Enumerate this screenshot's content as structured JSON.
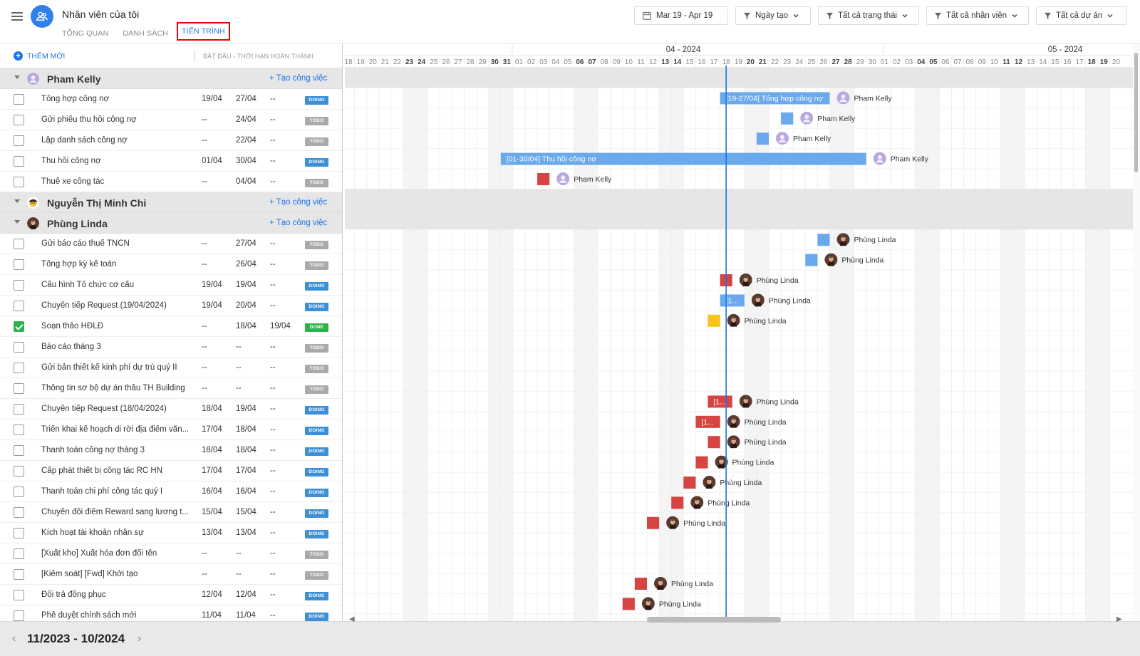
{
  "app": {
    "title": "Nhân viên của tôi",
    "tabs": [
      "TỔNG QUAN",
      "DANH SÁCH",
      "TIẾN TRÌNH"
    ],
    "active_tab": 2
  },
  "filters": {
    "date_range": "Mar 19 - Apr 19",
    "sort": "Ngày tạo",
    "status": "Tất cả trạng thái",
    "staff": "Tất cả nhân viên",
    "project": "Tất cả dự án"
  },
  "list": {
    "add_new": "THÊM MỚI",
    "col_header": "BẮT ĐẦU › THỜI HẠN  HOÀN THÀNH",
    "group_add": "+ Tạo công việc"
  },
  "timeline": {
    "months": [
      {
        "label": "04 - 2024",
        "x": 485
      },
      {
        "label": "05 - 2024",
        "x": 1021
      }
    ],
    "days": [
      "18",
      "19",
      "20",
      "21",
      "22",
      "23",
      "24",
      "25",
      "26",
      "27",
      "28",
      "29",
      "30",
      "31",
      "01",
      "02",
      "03",
      "04",
      "05",
      "06",
      "07",
      "08",
      "09",
      "10",
      "11",
      "12",
      "13",
      "14",
      "15",
      "16",
      "17",
      "18",
      "19",
      "20",
      "21",
      "22",
      "23",
      "24",
      "25",
      "26",
      "27",
      "28",
      "29",
      "30",
      "01",
      "02",
      "03",
      "04",
      "05",
      "06",
      "07",
      "08",
      "09",
      "10",
      "11",
      "12",
      "13",
      "14",
      "15",
      "16",
      "17",
      "18",
      "19",
      "20"
    ],
    "bold_days": [
      5,
      6,
      12,
      13,
      19,
      20,
      26,
      27,
      33,
      34,
      40,
      41,
      47,
      48,
      54,
      55,
      61,
      62
    ],
    "today_index": 31
  },
  "groups": [
    {
      "name": "Pham Kelly",
      "avatar": "kelly",
      "tasks": [
        {
          "name": "Tổng hợp công nợ",
          "start": "19/04",
          "due": "27/04",
          "done": "--",
          "status": "DOING",
          "checked": false,
          "bar": {
            "from": 31,
            "to": 39,
            "color": "blue",
            "label": "[19-27/04] Tổng hợp công nợ"
          },
          "assignee": "Pham Kelly"
        },
        {
          "name": "Gửi phiếu thu hồi công nợ",
          "start": "--",
          "due": "24/04",
          "done": "--",
          "status": "TODO",
          "checked": false,
          "bar": {
            "from": 36,
            "to": 36,
            "color": "blue",
            "label": ""
          },
          "assignee": "Pham Kelly"
        },
        {
          "name": "Lập danh sách công nợ",
          "start": "--",
          "due": "22/04",
          "done": "--",
          "status": "TODO",
          "checked": false,
          "bar": {
            "from": 34,
            "to": 34,
            "color": "blue",
            "label": ""
          },
          "assignee": "Pham Kelly"
        },
        {
          "name": "Thu hồi công nợ",
          "start": "01/04",
          "due": "30/04",
          "done": "--",
          "status": "DOING",
          "checked": false,
          "bar": {
            "from": 13,
            "to": 42,
            "color": "blue",
            "label": "[01-30/04] Thu hồi công nợ"
          },
          "assignee": "Pham Kelly"
        },
        {
          "name": "Thuê xe công tác",
          "start": "--",
          "due": "04/04",
          "done": "--",
          "status": "TODO",
          "checked": false,
          "bar": {
            "from": 16,
            "to": 16,
            "color": "red",
            "label": ""
          },
          "assignee": "Pham Kelly"
        }
      ]
    },
    {
      "name": "Nguyễn Thị Minh Chi",
      "avatar": "chi",
      "tasks": []
    },
    {
      "name": "Phùng Linda",
      "avatar": "linda",
      "tasks": [
        {
          "name": "Gửi báo cáo thuế TNCN",
          "start": "--",
          "due": "27/04",
          "done": "--",
          "status": "TODO",
          "checked": false,
          "bar": {
            "from": 39,
            "to": 39,
            "color": "blue",
            "label": ""
          },
          "assignee": "Phùng Linda"
        },
        {
          "name": "Tổng hợp kỳ kế toán",
          "start": "--",
          "due": "26/04",
          "done": "--",
          "status": "TODO",
          "checked": false,
          "bar": {
            "from": 38,
            "to": 38,
            "color": "blue",
            "label": ""
          },
          "assignee": "Phùng Linda"
        },
        {
          "name": "Cấu hình Tổ chức cơ cấu",
          "start": "19/04",
          "due": "19/04",
          "done": "--",
          "status": "DOING",
          "checked": false,
          "bar": {
            "from": 31,
            "to": 31,
            "color": "red",
            "label": ""
          },
          "assignee": "Phùng Linda"
        },
        {
          "name": "Chuyển tiếp Request (19/04/2024)",
          "start": "19/04",
          "due": "20/04",
          "done": "--",
          "status": "DOING",
          "checked": false,
          "bar": {
            "from": 31,
            "to": 32,
            "color": "blue",
            "label": "[1..."
          },
          "assignee": "Phùng Linda"
        },
        {
          "name": "Soạn thảo HĐLĐ",
          "start": "--",
          "due": "18/04",
          "done": "19/04",
          "status": "DONE",
          "checked": true,
          "bar": {
            "from": 30,
            "to": 30,
            "color": "yellow",
            "label": ""
          },
          "assignee": "Phùng Linda"
        },
        {
          "name": "Báo cáo tháng 3",
          "start": "--",
          "due": "--",
          "done": "--",
          "status": "TODO",
          "checked": false,
          "bar": null,
          "assignee": ""
        },
        {
          "name": "Gửi bản thiết kế kinh phí dự trù quý II",
          "start": "--",
          "due": "--",
          "done": "--",
          "status": "TODO",
          "checked": false,
          "bar": null,
          "assignee": ""
        },
        {
          "name": "Thông tin sơ bộ dự án thầu TH Building",
          "start": "--",
          "due": "--",
          "done": "--",
          "status": "TODO",
          "checked": false,
          "bar": null,
          "assignee": ""
        },
        {
          "name": "Chuyển tiếp Request (18/04/2024)",
          "start": "18/04",
          "due": "19/04",
          "done": "--",
          "status": "DOING",
          "checked": false,
          "bar": {
            "from": 30,
            "to": 31,
            "color": "red",
            "label": "[1..."
          },
          "assignee": "Phùng Linda"
        },
        {
          "name": "Triển khai kế hoạch di rời địa điểm văn...",
          "start": "17/04",
          "due": "18/04",
          "done": "--",
          "status": "DOING",
          "checked": false,
          "bar": {
            "from": 29,
            "to": 30,
            "color": "red",
            "label": "[1..."
          },
          "assignee": "Phùng Linda"
        },
        {
          "name": "Thanh toán công nợ tháng 3",
          "start": "18/04",
          "due": "18/04",
          "done": "--",
          "status": "DOING",
          "checked": false,
          "bar": {
            "from": 30,
            "to": 30,
            "color": "red",
            "label": ""
          },
          "assignee": "Phùng Linda"
        },
        {
          "name": "Cấp phát thiết bị công tác RC HN",
          "start": "17/04",
          "due": "17/04",
          "done": "--",
          "status": "DOING",
          "checked": false,
          "bar": {
            "from": 29,
            "to": 29,
            "color": "red",
            "label": ""
          },
          "assignee": "Phùng Linda"
        },
        {
          "name": "Thanh toán chi phí công tác quý I",
          "start": "16/04",
          "due": "16/04",
          "done": "--",
          "status": "DOING",
          "checked": false,
          "bar": {
            "from": 28,
            "to": 28,
            "color": "red",
            "label": ""
          },
          "assignee": "Phùng Linda"
        },
        {
          "name": "Chuyển đổi điểm Reward sang lương t...",
          "start": "15/04",
          "due": "15/04",
          "done": "--",
          "status": "DOING",
          "checked": false,
          "bar": {
            "from": 27,
            "to": 27,
            "color": "red",
            "label": ""
          },
          "assignee": "Phùng Linda"
        },
        {
          "name": "Kích hoạt tài khoản nhân sự",
          "start": "13/04",
          "due": "13/04",
          "done": "--",
          "status": "DOING",
          "checked": false,
          "bar": {
            "from": 25,
            "to": 25,
            "color": "red",
            "label": ""
          },
          "assignee": "Phùng Linda"
        },
        {
          "name": "[Xuất kho] Xuất hóa đơn đổi tên",
          "start": "--",
          "due": "--",
          "done": "--",
          "status": "TODO",
          "checked": false,
          "bar": null,
          "assignee": ""
        },
        {
          "name": "[Kiểm soát] [Fwd] Khởi tạo",
          "start": "--",
          "due": "--",
          "done": "--",
          "status": "TODO",
          "checked": false,
          "bar": null,
          "assignee": ""
        },
        {
          "name": "Đổi trả đồng phục",
          "start": "12/04",
          "due": "12/04",
          "done": "--",
          "status": "DOING",
          "checked": false,
          "bar": {
            "from": 24,
            "to": 24,
            "color": "red",
            "label": ""
          },
          "assignee": "Phùng Linda"
        },
        {
          "name": "Phê duyệt chính sách mới",
          "start": "11/04",
          "due": "11/04",
          "done": "--",
          "status": "DOING",
          "checked": false,
          "bar": {
            "from": 23,
            "to": 23,
            "color": "red",
            "label": ""
          },
          "assignee": "Phùng Linda"
        }
      ]
    }
  ],
  "footer": {
    "range": "11/2023 - 10/2024"
  },
  "colors": {
    "accent": "#1a73e8",
    "bar_blue": "#6aa9ec",
    "bar_red": "#d64541",
    "bar_yellow": "#f5c518",
    "group_bg": "#e6e6e6"
  }
}
